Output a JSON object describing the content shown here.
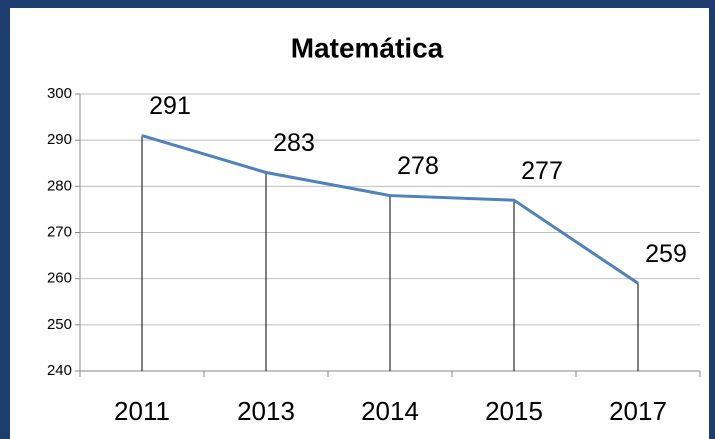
{
  "chart_data": {
    "type": "line",
    "title": "Matemática",
    "categories": [
      "2011",
      "2013",
      "2014",
      "2015",
      "2017"
    ],
    "values": [
      291,
      283,
      278,
      277,
      259
    ],
    "color": "#4f81bd",
    "ylim": [
      240,
      300
    ],
    "yticks": [
      240,
      250,
      260,
      270,
      280,
      290,
      300
    ],
    "grid": true
  }
}
